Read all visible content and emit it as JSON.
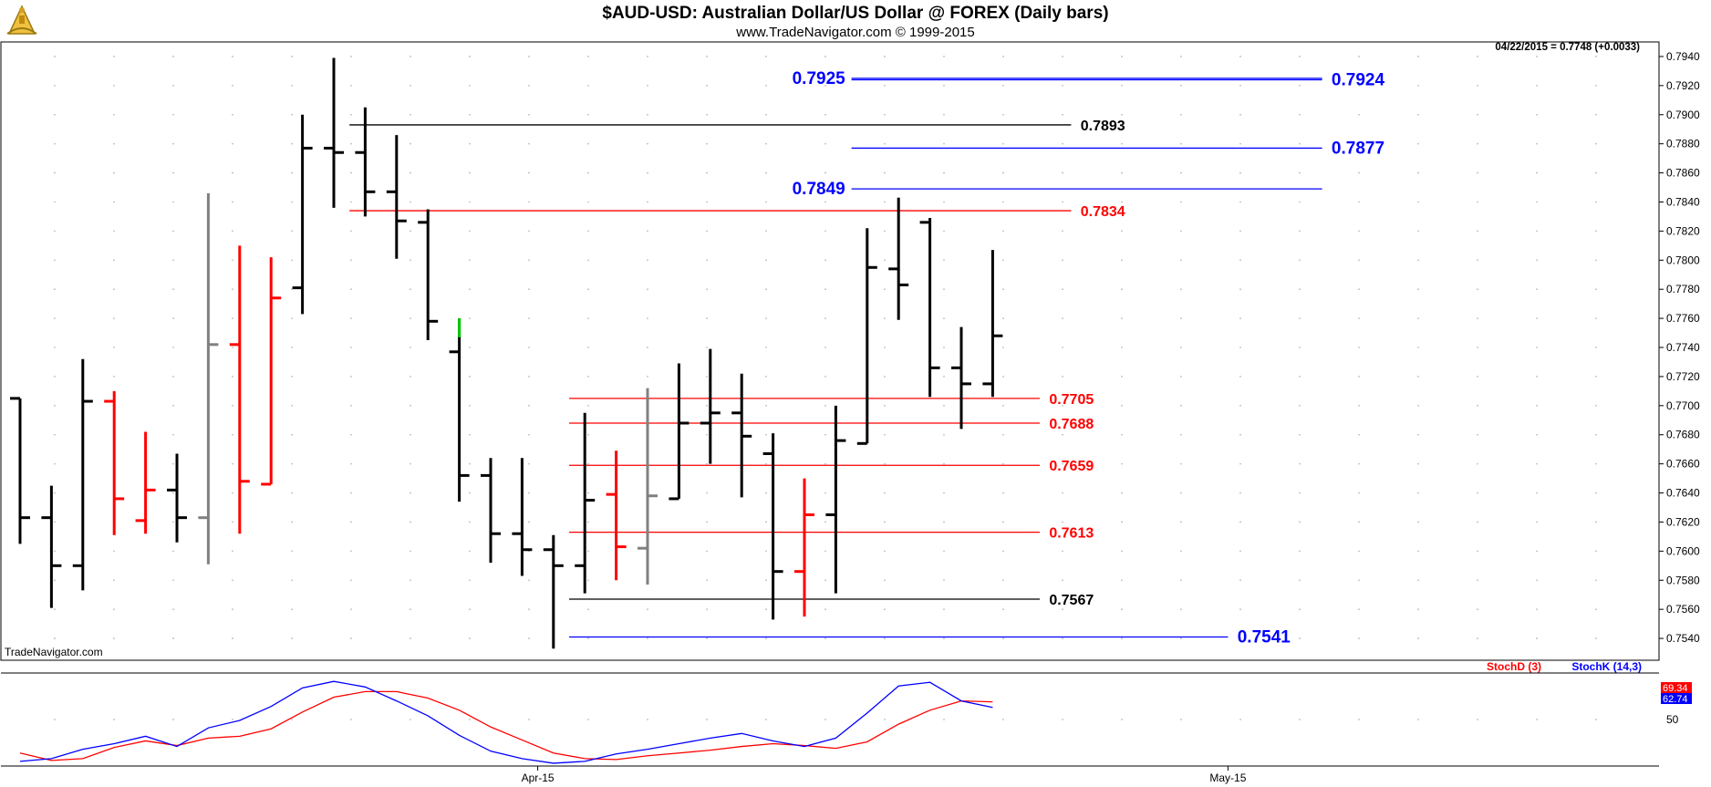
{
  "header": {
    "title": "$AUD-USD:  Australian Dollar/US Dollar @ FOREX  (Daily bars)",
    "subtitle": "www.TradeNavigator.com © 1999-2015",
    "last_quote": "04/22/2015 = 0.7748 (+0.0033)",
    "watermark": "TradeNavigator.com"
  },
  "logo": {
    "icon": "sextant-logo-icon"
  },
  "colors": {
    "up_bar": "#000000",
    "down_bar": "#ff0000",
    "neutral_bar": "#808080",
    "highlight_bar": "#00cc00",
    "level_red": "#ff0000",
    "level_black": "#000000",
    "level_blue": "#0000ff",
    "stoch_d": "#ff0000",
    "stoch_k": "#0000ff",
    "grid_dot": "#bbbbbb"
  },
  "chart_data": [
    {
      "type": "ohlc",
      "name": "price",
      "ylim": [
        0.7525,
        0.795
      ],
      "y_ticks": [
        "0.7540",
        "0.7560",
        "0.7580",
        "0.7600",
        "0.7620",
        "0.7640",
        "0.7660",
        "0.7680",
        "0.7700",
        "0.7720",
        "0.7740",
        "0.7760",
        "0.7780",
        "0.7800",
        "0.7820",
        "0.7840",
        "0.7860",
        "0.7880",
        "0.7900",
        "0.7920",
        "0.7940"
      ],
      "x_labels": [
        {
          "label": "Apr-15",
          "bar": 16.5
        },
        {
          "label": "May-15",
          "bar": 38.5
        }
      ],
      "bars": [
        {
          "o": 0.7705,
          "h": 0.7705,
          "l": 0.7605,
          "c": 0.7623,
          "color": "black"
        },
        {
          "o": 0.7623,
          "h": 0.7645,
          "l": 0.7561,
          "c": 0.759,
          "color": "black"
        },
        {
          "o": 0.759,
          "h": 0.7732,
          "l": 0.7573,
          "c": 0.7703,
          "color": "black"
        },
        {
          "o": 0.7703,
          "h": 0.771,
          "l": 0.7611,
          "c": 0.7636,
          "color": "red"
        },
        {
          "o": 0.7621,
          "h": 0.7682,
          "l": 0.7612,
          "c": 0.7642,
          "color": "red"
        },
        {
          "o": 0.7642,
          "h": 0.7667,
          "l": 0.7606,
          "c": 0.7623,
          "color": "black"
        },
        {
          "o": 0.7623,
          "h": 0.7846,
          "l": 0.7591,
          "c": 0.7742,
          "color": "gray"
        },
        {
          "o": 0.7742,
          "h": 0.781,
          "l": 0.7612,
          "c": 0.7648,
          "color": "red"
        },
        {
          "o": 0.7646,
          "h": 0.7802,
          "l": 0.7646,
          "c": 0.7774,
          "color": "red"
        },
        {
          "o": 0.7781,
          "h": 0.79,
          "l": 0.7763,
          "c": 0.7877,
          "color": "black"
        },
        {
          "o": 0.7877,
          "h": 0.7939,
          "l": 0.7836,
          "c": 0.7874,
          "color": "black"
        },
        {
          "o": 0.7874,
          "h": 0.7905,
          "l": 0.783,
          "c": 0.7847,
          "color": "black"
        },
        {
          "o": 0.7847,
          "h": 0.7886,
          "l": 0.7801,
          "c": 0.7827,
          "color": "black"
        },
        {
          "o": 0.7826,
          "h": 0.7835,
          "l": 0.7745,
          "c": 0.7758,
          "color": "black"
        },
        {
          "o": 0.7737,
          "h": 0.776,
          "l": 0.7634,
          "c": 0.7652,
          "color": "black",
          "green_top": 0.7747
        },
        {
          "o": 0.7652,
          "h": 0.7664,
          "l": 0.7592,
          "c": 0.7612,
          "color": "black"
        },
        {
          "o": 0.7612,
          "h": 0.7664,
          "l": 0.7583,
          "c": 0.7601,
          "color": "black"
        },
        {
          "o": 0.7601,
          "h": 0.7611,
          "l": 0.7533,
          "c": 0.759,
          "color": "black"
        },
        {
          "o": 0.759,
          "h": 0.7695,
          "l": 0.7571,
          "c": 0.7635,
          "color": "black"
        },
        {
          "o": 0.7639,
          "h": 0.7669,
          "l": 0.758,
          "c": 0.7603,
          "color": "red"
        },
        {
          "o": 0.7602,
          "h": 0.7712,
          "l": 0.7577,
          "c": 0.7638,
          "color": "gray"
        },
        {
          "o": 0.7636,
          "h": 0.7729,
          "l": 0.7636,
          "c": 0.7688,
          "color": "black"
        },
        {
          "o": 0.7688,
          "h": 0.7739,
          "l": 0.766,
          "c": 0.7695,
          "color": "black"
        },
        {
          "o": 0.7695,
          "h": 0.7722,
          "l": 0.7637,
          "c": 0.7679,
          "color": "black"
        },
        {
          "o": 0.7667,
          "h": 0.7681,
          "l": 0.7553,
          "c": 0.7586,
          "color": "black"
        },
        {
          "o": 0.7586,
          "h": 0.765,
          "l": 0.7555,
          "c": 0.7625,
          "color": "red"
        },
        {
          "o": 0.7625,
          "h": 0.77,
          "l": 0.7571,
          "c": 0.7676,
          "color": "black"
        },
        {
          "o": 0.7674,
          "h": 0.7822,
          "l": 0.7674,
          "c": 0.7795,
          "color": "black"
        },
        {
          "o": 0.7794,
          "h": 0.7843,
          "l": 0.7759,
          "c": 0.7783,
          "color": "black"
        },
        {
          "o": 0.7826,
          "h": 0.7829,
          "l": 0.7706,
          "c": 0.7726,
          "color": "black"
        },
        {
          "o": 0.7726,
          "h": 0.7754,
          "l": 0.7684,
          "c": 0.7715,
          "color": "black"
        },
        {
          "o": 0.7715,
          "h": 0.7807,
          "l": 0.7706,
          "c": 0.7748,
          "color": "black"
        }
      ],
      "levels": [
        {
          "value": 0.7925,
          "text": "0.7925",
          "color": "blue",
          "x0": 26.5,
          "x1": 41.5,
          "label_side": "left",
          "label_at": 26.3
        },
        {
          "value": 0.7924,
          "text": "0.7924",
          "color": "blue",
          "x0": 26.5,
          "x1": 41.5,
          "label_side": "right",
          "label_at": 41.8
        },
        {
          "value": 0.7893,
          "text": "0.7893",
          "color": "black",
          "x0": 10.5,
          "x1": 33.5,
          "label_side": "right",
          "label_at": 33.8
        },
        {
          "value": 0.7877,
          "text": "0.7877",
          "color": "blue",
          "x0": 26.5,
          "x1": 41.5,
          "label_side": "right",
          "label_at": 41.8
        },
        {
          "value": 0.7849,
          "text": "0.7849",
          "color": "blue",
          "x0": 26.5,
          "x1": 41.5,
          "label_side": "left",
          "label_at": 26.3
        },
        {
          "value": 0.7834,
          "text": "0.7834",
          "color": "red",
          "x0": 10.5,
          "x1": 33.5,
          "label_side": "right",
          "label_at": 33.8
        },
        {
          "value": 0.7705,
          "text": "0.7705",
          "color": "red",
          "x0": 17.5,
          "x1": 32.5,
          "label_side": "right",
          "label_at": 32.8
        },
        {
          "value": 0.7688,
          "text": "0.7688",
          "color": "red",
          "x0": 17.5,
          "x1": 32.5,
          "label_side": "right",
          "label_at": 32.8
        },
        {
          "value": 0.7659,
          "text": "0.7659",
          "color": "red",
          "x0": 17.5,
          "x1": 32.5,
          "label_side": "right",
          "label_at": 32.8
        },
        {
          "value": 0.7613,
          "text": "0.7613",
          "color": "red",
          "x0": 17.5,
          "x1": 32.5,
          "label_side": "right",
          "label_at": 32.8
        },
        {
          "value": 0.7567,
          "text": "0.7567",
          "color": "black",
          "x0": 17.5,
          "x1": 32.5,
          "label_side": "right",
          "label_at": 32.8
        },
        {
          "value": 0.7541,
          "text": "0.7541",
          "color": "blue",
          "x0": 17.5,
          "x1": 38.5,
          "label_side": "right",
          "label_at": 38.8
        }
      ]
    },
    {
      "type": "line",
      "name": "stochastic",
      "ylim": [
        0,
        100
      ],
      "y_ticks": [
        "50"
      ],
      "legend": [
        {
          "text": "StochD (3)",
          "color": "red"
        },
        {
          "text": "StochK (14,3)",
          "color": "blue"
        }
      ],
      "last_values": [
        {
          "text": "69.34",
          "value": 69.34,
          "color": "red"
        },
        {
          "text": "62.74",
          "value": 62.74,
          "color": "blue"
        }
      ],
      "series": [
        {
          "color": "red",
          "values": [
            14,
            6,
            8,
            20,
            27,
            22,
            30,
            32,
            40,
            58,
            74,
            80,
            80,
            73,
            60,
            42,
            28,
            14,
            8,
            7,
            11,
            14,
            17,
            21,
            24,
            22,
            19,
            26,
            45,
            60,
            70,
            69
          ]
        },
        {
          "color": "blue",
          "values": [
            5,
            8,
            18,
            24,
            32,
            21,
            41,
            49,
            64,
            84,
            91,
            85,
            70,
            54,
            33,
            16,
            8,
            3,
            5,
            13,
            18,
            24,
            30,
            35,
            27,
            21,
            30,
            57,
            86,
            90,
            70,
            63
          ]
        }
      ]
    }
  ]
}
